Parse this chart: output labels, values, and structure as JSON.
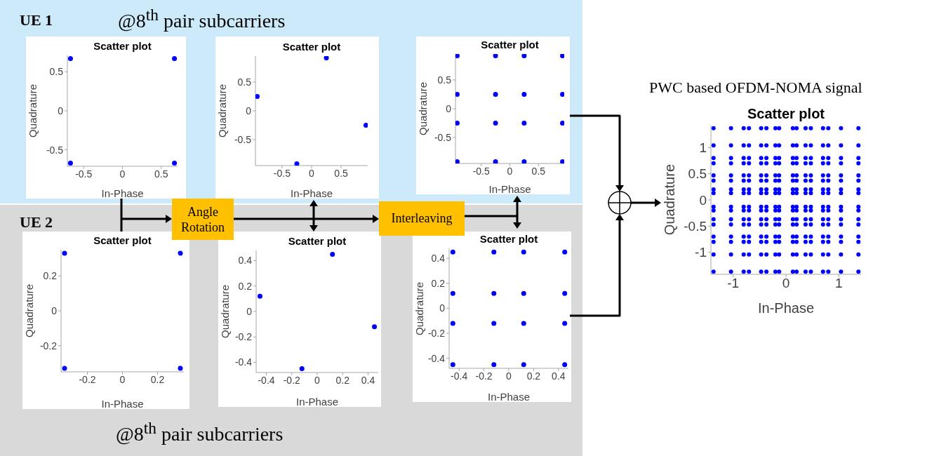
{
  "chart_data": [
    {
      "type": "scatter",
      "title": "Scatter plot",
      "xlabel": "In-Phase",
      "ylabel": "Quadrature",
      "color": "#0000ff",
      "marker": "circle",
      "x": [
        -0.67,
        0.67,
        -0.67,
        0.67
      ],
      "values": [
        0.67,
        0.67,
        -0.67,
        -0.67
      ],
      "xlim": [
        -0.71,
        0.71
      ],
      "ylim": [
        -0.71,
        0.71
      ],
      "xticks": [
        -0.5,
        0,
        0.5
      ],
      "yticks": [
        -0.5,
        0,
        0.5
      ],
      "annotations": [
        "UE 1",
        "@8$^{th}$ pair subcarriers"
      ]
    },
    {
      "type": "scatter",
      "title": "Scatter plot",
      "xlabel": "In-Phase",
      "ylabel": "Quadrature",
      "color": "#0000ff",
      "marker": "circle",
      "x": [
        -0.92,
        0.25,
        0.92,
        -0.25
      ],
      "values": [
        0.25,
        0.92,
        -0.25,
        -0.92
      ],
      "xlim": [
        -0.95,
        0.95
      ],
      "ylim": [
        -0.95,
        0.95
      ],
      "xticks": [
        -0.5,
        0,
        0.5
      ],
      "yticks": [
        -0.5,
        0,
        0.5
      ]
    },
    {
      "type": "scatter",
      "title": "Scatter plot",
      "xlabel": "In-Phase",
      "ylabel": "Quadrature",
      "color": "#0000ff",
      "marker": "circle",
      "x": [
        -0.92,
        -0.25,
        0.25,
        0.92,
        -0.92,
        -0.25,
        0.25,
        0.92,
        -0.92,
        -0.25,
        0.25,
        0.92,
        -0.92,
        -0.25,
        0.25,
        0.92
      ],
      "values": [
        0.92,
        0.92,
        0.92,
        0.92,
        0.25,
        0.25,
        0.25,
        0.25,
        -0.25,
        -0.25,
        -0.25,
        -0.25,
        -0.92,
        -0.92,
        -0.92,
        -0.92
      ],
      "xlim": [
        -0.95,
        0.95
      ],
      "ylim": [
        -0.95,
        0.95
      ],
      "xticks": [
        -0.5,
        0,
        0.5
      ],
      "yticks": [
        -0.5,
        0,
        0.5
      ]
    },
    {
      "type": "scatter",
      "title": "Scatter plot",
      "xlabel": "In-Phase",
      "ylabel": "Quadrature",
      "color": "#0000ff",
      "marker": "circle",
      "x": [
        -0.33,
        0.33,
        -0.33,
        0.33
      ],
      "values": [
        0.33,
        0.33,
        -0.33,
        -0.33
      ],
      "xlim": [
        -0.35,
        0.35
      ],
      "ylim": [
        -0.35,
        0.35
      ],
      "xticks": [
        -0.2,
        0,
        0.2
      ],
      "yticks": [
        -0.2,
        0,
        0.2
      ],
      "annotations": [
        "UE 2",
        "@8$^{th}$ pair subcarriers"
      ]
    },
    {
      "type": "scatter",
      "title": "Scatter plot",
      "xlabel": "In-Phase",
      "ylabel": "Quadrature",
      "color": "#0000ff",
      "marker": "circle",
      "x": [
        -0.45,
        0.12,
        0.45,
        -0.12
      ],
      "values": [
        0.12,
        0.45,
        -0.12,
        -0.45
      ],
      "xlim": [
        -0.48,
        0.48
      ],
      "ylim": [
        -0.48,
        0.48
      ],
      "xticks": [
        -0.4,
        -0.2,
        0,
        0.2,
        0.4
      ],
      "yticks": [
        -0.4,
        -0.2,
        0,
        0.2,
        0.4
      ],
      "annotations": [
        "Angle Rotation"
      ]
    },
    {
      "type": "scatter",
      "title": "Scatter plot",
      "xlabel": "In-Phase",
      "ylabel": "Quadrature",
      "color": "#0000ff",
      "marker": "circle",
      "x": [
        -0.45,
        -0.12,
        0.12,
        0.45,
        -0.45,
        -0.12,
        0.12,
        0.45,
        -0.45,
        -0.12,
        0.12,
        0.45,
        -0.45,
        -0.12,
        0.12,
        0.45
      ],
      "values": [
        0.45,
        0.45,
        0.45,
        0.45,
        0.12,
        0.12,
        0.12,
        0.12,
        -0.12,
        -0.12,
        -0.12,
        -0.12,
        -0.45,
        -0.45,
        -0.45,
        -0.45
      ],
      "xlim": [
        -0.48,
        0.48
      ],
      "ylim": [
        -0.48,
        0.48
      ],
      "xticks": [
        -0.4,
        -0.2,
        0,
        0.2,
        0.4
      ],
      "yticks": [
        -0.4,
        -0.2,
        0,
        0.2,
        0.4
      ],
      "annotations": [
        "Interleaving"
      ]
    },
    {
      "type": "scatter",
      "title": "Scatter plot",
      "xlabel": "In-Phase",
      "ylabel": "Quadrature",
      "color": "#0000ff",
      "marker": "circle",
      "x": [
        -1.37,
        -1.04,
        -0.8,
        -0.7,
        -0.47,
        -0.37,
        -0.2,
        -0.13,
        0.13,
        0.2,
        0.37,
        0.47,
        0.7,
        0.8,
        1.04,
        1.37,
        -1.37,
        -1.04,
        -0.8,
        -0.7,
        -0.47,
        -0.37,
        -0.2,
        -0.13,
        0.13,
        0.2,
        0.37,
        0.47,
        0.7,
        0.8,
        1.04,
        1.37,
        -1.37,
        -1.04,
        -0.8,
        -0.7,
        -0.47,
        -0.37,
        -0.2,
        -0.13,
        0.13,
        0.2,
        0.37,
        0.47,
        0.7,
        0.8,
        1.04,
        1.37,
        -1.37,
        -1.04,
        -0.8,
        -0.7,
        -0.47,
        -0.37,
        -0.2,
        -0.13,
        0.13,
        0.2,
        0.37,
        0.47,
        0.7,
        0.8,
        1.04,
        1.37,
        -1.37,
        -1.04,
        -0.8,
        -0.7,
        -0.47,
        -0.37,
        -0.2,
        -0.13,
        0.13,
        0.2,
        0.37,
        0.47,
        0.7,
        0.8,
        1.04,
        1.37,
        -1.37,
        -1.04,
        -0.8,
        -0.7,
        -0.47,
        -0.37,
        -0.2,
        -0.13,
        0.13,
        0.2,
        0.37,
        0.47,
        0.7,
        0.8,
        1.04,
        1.37,
        -1.37,
        -1.04,
        -0.8,
        -0.7,
        -0.47,
        -0.37,
        -0.2,
        -0.13,
        0.13,
        0.2,
        0.37,
        0.47,
        0.7,
        0.8,
        1.04,
        1.37,
        -1.37,
        -1.04,
        -0.8,
        -0.7,
        -0.47,
        -0.37,
        -0.2,
        -0.13,
        0.13,
        0.2,
        0.37,
        0.47,
        0.7,
        0.8,
        1.04,
        1.37,
        -1.37,
        -1.04,
        -0.8,
        -0.7,
        -0.47,
        -0.37,
        -0.2,
        -0.13,
        0.13,
        0.2,
        0.37,
        0.47,
        0.7,
        0.8,
        1.04,
        1.37,
        -1.37,
        -1.04,
        -0.8,
        -0.7,
        -0.47,
        -0.37,
        -0.2,
        -0.13,
        0.13,
        0.2,
        0.37,
        0.47,
        0.7,
        0.8,
        1.04,
        1.37,
        -1.37,
        -1.04,
        -0.8,
        -0.7,
        -0.47,
        -0.37,
        -0.2,
        -0.13,
        0.13,
        0.2,
        0.37,
        0.47,
        0.7,
        0.8,
        1.04,
        1.37,
        -1.37,
        -1.04,
        -0.8,
        -0.7,
        -0.47,
        -0.37,
        -0.2,
        -0.13,
        0.13,
        0.2,
        0.37,
        0.47,
        0.7,
        0.8,
        1.04,
        1.37,
        -1.37,
        -1.04,
        -0.8,
        -0.7,
        -0.47,
        -0.37,
        -0.2,
        -0.13,
        0.13,
        0.2,
        0.37,
        0.47,
        0.7,
        0.8,
        1.04,
        1.37,
        -1.37,
        -1.04,
        -0.8,
        -0.7,
        -0.47,
        -0.37,
        -0.2,
        -0.13,
        0.13,
        0.2,
        0.37,
        0.47,
        0.7,
        0.8,
        1.04,
        1.37,
        -1.37,
        -1.04,
        -0.8,
        -0.7,
        -0.47,
        -0.37,
        -0.2,
        -0.13,
        0.13,
        0.2,
        0.37,
        0.47,
        0.7,
        0.8,
        1.04,
        1.37,
        -1.37,
        -1.04,
        -0.8,
        -0.7,
        -0.47,
        -0.37,
        -0.2,
        -0.13,
        0.13,
        0.2,
        0.37,
        0.47,
        0.7,
        0.8,
        1.04,
        1.37
      ],
      "values": [
        1.37,
        1.37,
        1.37,
        1.37,
        1.37,
        1.37,
        1.37,
        1.37,
        1.37,
        1.37,
        1.37,
        1.37,
        1.37,
        1.37,
        1.37,
        1.37,
        1.04,
        1.04,
        1.04,
        1.04,
        1.04,
        1.04,
        1.04,
        1.04,
        1.04,
        1.04,
        1.04,
        1.04,
        1.04,
        1.04,
        1.04,
        1.04,
        0.8,
        0.8,
        0.8,
        0.8,
        0.8,
        0.8,
        0.8,
        0.8,
        0.8,
        0.8,
        0.8,
        0.8,
        0.8,
        0.8,
        0.8,
        0.8,
        0.7,
        0.7,
        0.7,
        0.7,
        0.7,
        0.7,
        0.7,
        0.7,
        0.7,
        0.7,
        0.7,
        0.7,
        0.7,
        0.7,
        0.7,
        0.7,
        0.47,
        0.47,
        0.47,
        0.47,
        0.47,
        0.47,
        0.47,
        0.47,
        0.47,
        0.47,
        0.47,
        0.47,
        0.47,
        0.47,
        0.47,
        0.47,
        0.37,
        0.37,
        0.37,
        0.37,
        0.37,
        0.37,
        0.37,
        0.37,
        0.37,
        0.37,
        0.37,
        0.37,
        0.37,
        0.37,
        0.37,
        0.37,
        0.2,
        0.2,
        0.2,
        0.2,
        0.2,
        0.2,
        0.2,
        0.2,
        0.2,
        0.2,
        0.2,
        0.2,
        0.2,
        0.2,
        0.2,
        0.2,
        0.13,
        0.13,
        0.13,
        0.13,
        0.13,
        0.13,
        0.13,
        0.13,
        0.13,
        0.13,
        0.13,
        0.13,
        0.13,
        0.13,
        0.13,
        0.13,
        -0.13,
        -0.13,
        -0.13,
        -0.13,
        -0.13,
        -0.13,
        -0.13,
        -0.13,
        -0.13,
        -0.13,
        -0.13,
        -0.13,
        -0.13,
        -0.13,
        -0.13,
        -0.13,
        -0.2,
        -0.2,
        -0.2,
        -0.2,
        -0.2,
        -0.2,
        -0.2,
        -0.2,
        -0.2,
        -0.2,
        -0.2,
        -0.2,
        -0.2,
        -0.2,
        -0.2,
        -0.2,
        -0.37,
        -0.37,
        -0.37,
        -0.37,
        -0.37,
        -0.37,
        -0.37,
        -0.37,
        -0.37,
        -0.37,
        -0.37,
        -0.37,
        -0.37,
        -0.37,
        -0.37,
        -0.37,
        -0.47,
        -0.47,
        -0.47,
        -0.47,
        -0.47,
        -0.47,
        -0.47,
        -0.47,
        -0.47,
        -0.47,
        -0.47,
        -0.47,
        -0.47,
        -0.47,
        -0.47,
        -0.47,
        -0.7,
        -0.7,
        -0.7,
        -0.7,
        -0.7,
        -0.7,
        -0.7,
        -0.7,
        -0.7,
        -0.7,
        -0.7,
        -0.7,
        -0.7,
        -0.7,
        -0.7,
        -0.7,
        -0.8,
        -0.8,
        -0.8,
        -0.8,
        -0.8,
        -0.8,
        -0.8,
        -0.8,
        -0.8,
        -0.8,
        -0.8,
        -0.8,
        -0.8,
        -0.8,
        -0.8,
        -0.8,
        -1.04,
        -1.04,
        -1.04,
        -1.04,
        -1.04,
        -1.04,
        -1.04,
        -1.04,
        -1.04,
        -1.04,
        -1.04,
        -1.04,
        -1.04,
        -1.04,
        -1.04,
        -1.04,
        -1.37,
        -1.37,
        -1.37,
        -1.37,
        -1.37,
        -1.37,
        -1.37,
        -1.37,
        -1.37,
        -1.37,
        -1.37,
        -1.37,
        -1.37,
        -1.37,
        -1.37,
        -1.37
      ],
      "xlim": [
        -1.42,
        1.42
      ],
      "ylim": [
        -1.42,
        1.42
      ],
      "xticks": [
        -1,
        0,
        1
      ],
      "yticks": [
        -1,
        -0.5,
        0,
        0.5,
        1
      ],
      "annotations": [
        "PWC based OFDM-NOMA signal"
      ]
    }
  ]
}
